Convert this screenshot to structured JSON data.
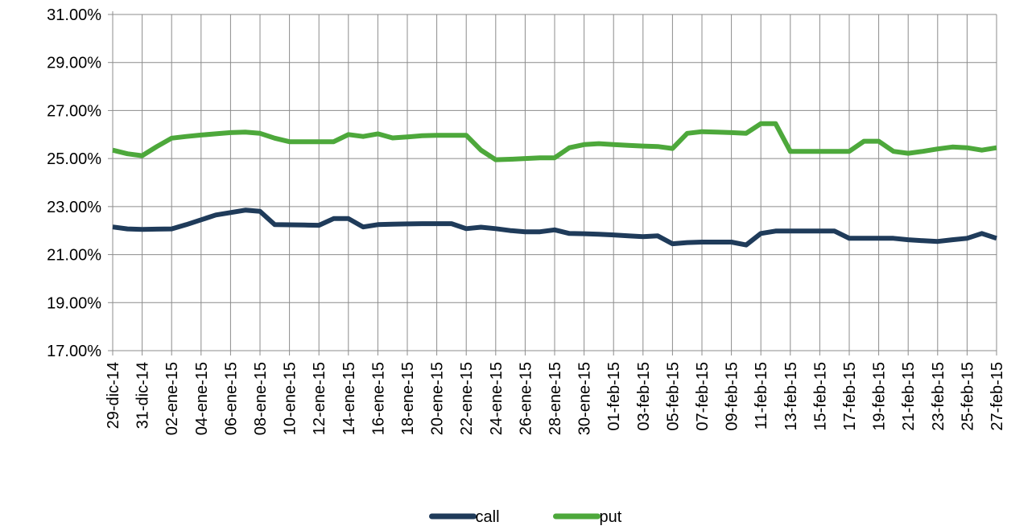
{
  "chart_data": {
    "type": "line",
    "title": "",
    "xlabel": "",
    "ylabel": "",
    "ylim": [
      0.17,
      0.31
    ],
    "y_tick_labels": [
      "17.00%",
      "19.00%",
      "21.00%",
      "23.00%",
      "25.00%",
      "27.00%",
      "29.00%",
      "31.00%"
    ],
    "y_ticks": [
      0.17,
      0.19,
      0.21,
      0.23,
      0.25,
      0.27,
      0.29,
      0.31
    ],
    "x_range": [
      "2014-12-29",
      "2015-02-27"
    ],
    "x_tick_labels": [
      "29-dic-14",
      "31-dic-14",
      "02-ene-15",
      "04-ene-15",
      "06-ene-15",
      "08-ene-15",
      "10-ene-15",
      "12-ene-15",
      "14-ene-15",
      "16-ene-15",
      "18-ene-15",
      "20-ene-15",
      "22-ene-15",
      "24-ene-15",
      "26-ene-15",
      "28-ene-15",
      "30-ene-15",
      "01-feb-15",
      "03-feb-15",
      "05-feb-15",
      "07-feb-15",
      "09-feb-15",
      "11-feb-15",
      "13-feb-15",
      "15-feb-15",
      "17-feb-15",
      "19-feb-15",
      "21-feb-15",
      "23-feb-15",
      "25-feb-15",
      "27-feb-15"
    ],
    "x_ticks": [
      "2014-12-29",
      "2014-12-31",
      "2015-01-02",
      "2015-01-04",
      "2015-01-06",
      "2015-01-08",
      "2015-01-10",
      "2015-01-12",
      "2015-01-14",
      "2015-01-16",
      "2015-01-18",
      "2015-01-20",
      "2015-01-22",
      "2015-01-24",
      "2015-01-26",
      "2015-01-28",
      "2015-01-30",
      "2015-02-01",
      "2015-02-03",
      "2015-02-05",
      "2015-02-07",
      "2015-02-09",
      "2015-02-11",
      "2015-02-13",
      "2015-02-15",
      "2015-02-17",
      "2015-02-19",
      "2015-02-21",
      "2015-02-23",
      "2015-02-25",
      "2015-02-27"
    ],
    "grid": true,
    "legend_position": "bottom-center",
    "series": [
      {
        "name": "call",
        "color": "#1F3B5A",
        "x": [
          "2014-12-29",
          "2014-12-30",
          "2014-12-31",
          "2015-01-01",
          "2015-01-02",
          "2015-01-03",
          "2015-01-04",
          "2015-01-05",
          "2015-01-06",
          "2015-01-07",
          "2015-01-08",
          "2015-01-09",
          "2015-01-10",
          "2015-01-11",
          "2015-01-12",
          "2015-01-13",
          "2015-01-14",
          "2015-01-15",
          "2015-01-16",
          "2015-01-17",
          "2015-01-18",
          "2015-01-19",
          "2015-01-20",
          "2015-01-21",
          "2015-01-22",
          "2015-01-23",
          "2015-01-24",
          "2015-01-25",
          "2015-01-26",
          "2015-01-27",
          "2015-01-28",
          "2015-01-29",
          "2015-01-30",
          "2015-01-31",
          "2015-02-01",
          "2015-02-02",
          "2015-02-03",
          "2015-02-04",
          "2015-02-05",
          "2015-02-06",
          "2015-02-07",
          "2015-02-08",
          "2015-02-09",
          "2015-02-10",
          "2015-02-11",
          "2015-02-12",
          "2015-02-13",
          "2015-02-14",
          "2015-02-15",
          "2015-02-16",
          "2015-02-17",
          "2015-02-18",
          "2015-02-19",
          "2015-02-20",
          "2015-02-21",
          "2015-02-22",
          "2015-02-23",
          "2015-02-24",
          "2015-02-25",
          "2015-02-26",
          "2015-02-27"
        ],
        "values": [
          0.2215,
          0.2207,
          0.2205,
          0.2206,
          0.2207,
          0.2225,
          0.2245,
          0.2265,
          0.2275,
          0.2285,
          0.228,
          0.2225,
          0.2224,
          0.2223,
          0.2222,
          0.225,
          0.225,
          0.2215,
          0.2225,
          0.2227,
          0.2228,
          0.2229,
          0.2229,
          0.2229,
          0.2208,
          0.2214,
          0.2208,
          0.22,
          0.2195,
          0.2195,
          0.2203,
          0.2188,
          0.2187,
          0.2185,
          0.2182,
          0.2178,
          0.2175,
          0.2178,
          0.2145,
          0.215,
          0.2152,
          0.2152,
          0.2152,
          0.214,
          0.2188,
          0.2198,
          0.2198,
          0.2198,
          0.2198,
          0.2198,
          0.2168,
          0.2168,
          0.2168,
          0.2168,
          0.2162,
          0.2158,
          0.2155,
          0.2162,
          0.2168,
          0.2188,
          0.2168
        ]
      },
      {
        "name": "put",
        "color": "#4DA83B",
        "x": [
          "2014-12-29",
          "2014-12-30",
          "2014-12-31",
          "2015-01-01",
          "2015-01-02",
          "2015-01-03",
          "2015-01-04",
          "2015-01-05",
          "2015-01-06",
          "2015-01-07",
          "2015-01-08",
          "2015-01-09",
          "2015-01-10",
          "2015-01-11",
          "2015-01-12",
          "2015-01-13",
          "2015-01-14",
          "2015-01-15",
          "2015-01-16",
          "2015-01-17",
          "2015-01-18",
          "2015-01-19",
          "2015-01-20",
          "2015-01-21",
          "2015-01-22",
          "2015-01-23",
          "2015-01-24",
          "2015-01-25",
          "2015-01-26",
          "2015-01-27",
          "2015-01-28",
          "2015-01-29",
          "2015-01-30",
          "2015-01-31",
          "2015-02-01",
          "2015-02-02",
          "2015-02-03",
          "2015-02-04",
          "2015-02-05",
          "2015-02-06",
          "2015-02-07",
          "2015-02-08",
          "2015-02-09",
          "2015-02-10",
          "2015-02-11",
          "2015-02-12",
          "2015-02-13",
          "2015-02-14",
          "2015-02-15",
          "2015-02-16",
          "2015-02-17",
          "2015-02-18",
          "2015-02-19",
          "2015-02-20",
          "2015-02-21",
          "2015-02-22",
          "2015-02-23",
          "2015-02-24",
          "2015-02-25",
          "2015-02-26",
          "2015-02-27"
        ],
        "values": [
          0.2535,
          0.252,
          0.2512,
          0.255,
          0.2585,
          0.2592,
          0.2598,
          0.2603,
          0.2608,
          0.261,
          0.2605,
          0.2585,
          0.257,
          0.257,
          0.257,
          0.257,
          0.26,
          0.2592,
          0.2603,
          0.2586,
          0.259,
          0.2595,
          0.2597,
          0.2597,
          0.2597,
          0.2535,
          0.2495,
          0.2497,
          0.25,
          0.2503,
          0.2503,
          0.2545,
          0.2558,
          0.2562,
          0.2558,
          0.2555,
          0.2552,
          0.255,
          0.2542,
          0.2605,
          0.2612,
          0.261,
          0.2608,
          0.2605,
          0.2645,
          0.2645,
          0.253,
          0.253,
          0.253,
          0.253,
          0.253,
          0.2572,
          0.2572,
          0.253,
          0.2522,
          0.253,
          0.254,
          0.2548,
          0.2545,
          0.2535,
          0.2545
        ]
      }
    ]
  }
}
